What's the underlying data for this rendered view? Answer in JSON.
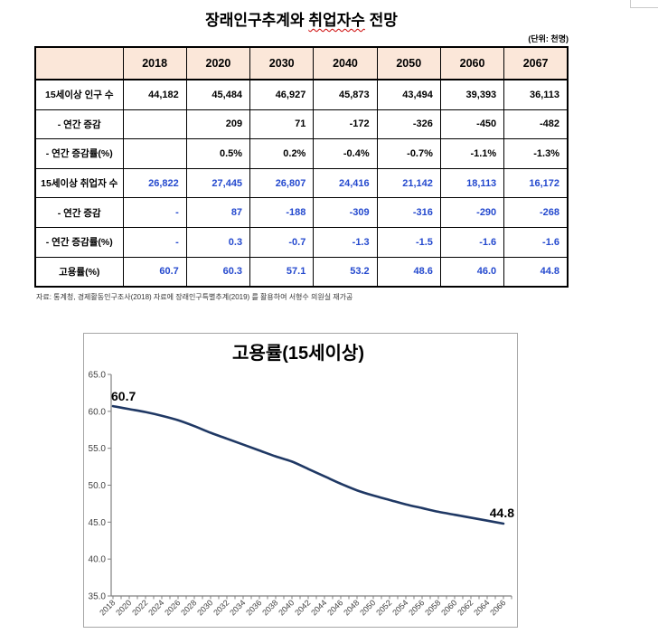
{
  "title": {
    "part1": "장래인구추계와 ",
    "word_underlined": "취업자수",
    "part2": " 전망"
  },
  "unit_note": "(단위: 천명)",
  "table": {
    "col_headers": [
      "",
      "2018",
      "2020",
      "2030",
      "2040",
      "2050",
      "2060",
      "2067"
    ],
    "rows": [
      {
        "label": "15세이상 인구 수",
        "values": [
          "44,182",
          "45,484",
          "46,927",
          "45,873",
          "43,494",
          "39,393",
          "36,113"
        ],
        "style": "black"
      },
      {
        "label": "- 연간 증감",
        "values": [
          "",
          "209",
          "71",
          "-172",
          "-326",
          "-450",
          "-482"
        ],
        "style": "black"
      },
      {
        "label": "- 연간 증감률(%)",
        "values": [
          "",
          "0.5%",
          "0.2%",
          "-0.4%",
          "-0.7%",
          "-1.1%",
          "-1.3%"
        ],
        "style": "black"
      },
      {
        "label": "15세이상 취업자 수",
        "values": [
          "26,822",
          "27,445",
          "26,807",
          "24,416",
          "21,142",
          "18,113",
          "16,172"
        ],
        "style": "blue"
      },
      {
        "label": "- 연간 증감",
        "values": [
          "-",
          "87",
          "-188",
          "-309",
          "-316",
          "-290",
          "-268"
        ],
        "style": "blue"
      },
      {
        "label": "- 연간 증감률(%)",
        "values": [
          "-",
          "0.3",
          "-0.7",
          "-1.3",
          "-1.5",
          "-1.6",
          "-1.6"
        ],
        "style": "blue"
      },
      {
        "label": "고용률(%)",
        "values": [
          "60.7",
          "60.3",
          "57.1",
          "53.2",
          "48.6",
          "46.0",
          "44.8"
        ],
        "style": "blue"
      }
    ]
  },
  "source_note": "자료: 통계청, 경제활동인구조사(2018) 자료에 장래인구특별추계(2019) 를 활용하여 서형수 의원실 재가공",
  "colors": {
    "header_bg": "#FBE7D9",
    "blue_text": "#2449CE",
    "line": "#1F3864",
    "axis": "#808080",
    "axis_label": "#404040"
  },
  "chart_data": {
    "type": "line",
    "title": "고용률(15세이상)",
    "x": [
      2018,
      2020,
      2022,
      2024,
      2026,
      2028,
      2030,
      2032,
      2034,
      2036,
      2038,
      2040,
      2042,
      2044,
      2046,
      2048,
      2050,
      2052,
      2054,
      2056,
      2058,
      2060,
      2062,
      2064,
      2066
    ],
    "values": [
      60.7,
      60.3,
      59.9,
      59.4,
      58.8,
      58.0,
      57.1,
      56.3,
      55.5,
      54.7,
      53.9,
      53.2,
      52.2,
      51.2,
      50.2,
      49.3,
      48.6,
      48.0,
      47.4,
      46.9,
      46.4,
      46.0,
      45.6,
      45.2,
      44.8
    ],
    "ylim": [
      35.0,
      65.0
    ],
    "ytick_step": 5,
    "ytick_labels": [
      "35.0",
      "40.0",
      "45.0",
      "50.0",
      "55.0",
      "60.0",
      "65.0"
    ],
    "xtick_label_step": 2,
    "first_point_label": "60.7",
    "last_point_label": "44.8",
    "grid": false,
    "legend": null
  }
}
